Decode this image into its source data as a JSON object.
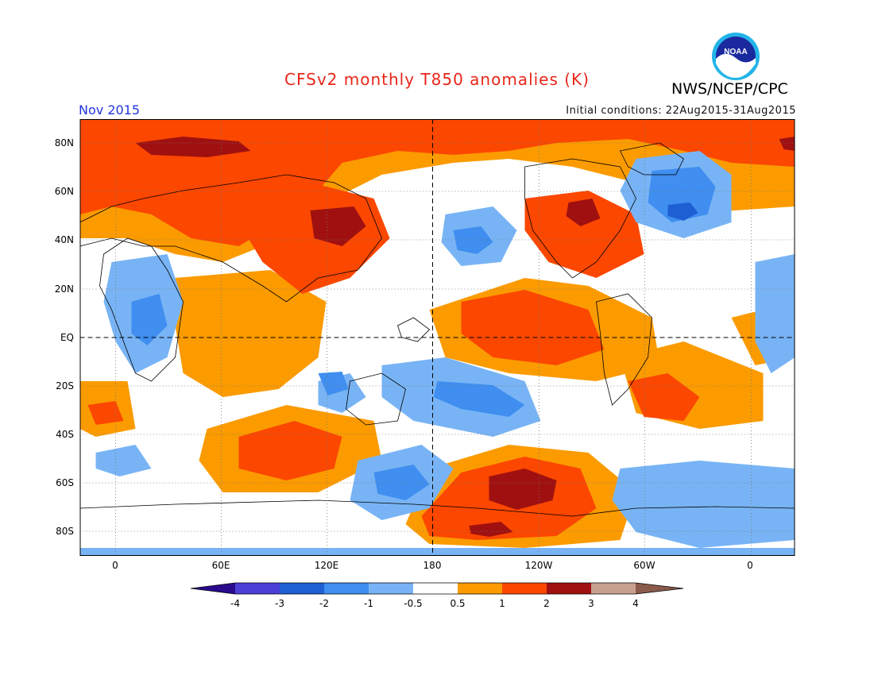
{
  "header": {
    "title": "CFSv2 monthly T850 anomalies (K)",
    "agency": "NWS/NCEP/CPC",
    "logo_text": "NOAA",
    "month": "Nov 2015",
    "initial_conditions": "Initial conditions: 22Aug2015-31Aug2015"
  },
  "map": {
    "variable": "T850 anomaly",
    "units": "K",
    "projection": "cylindrical-equidistant",
    "lon_range": [
      -20,
      380
    ],
    "lat_range": [
      -90,
      90
    ],
    "lat_labels": [
      "80N",
      "60N",
      "40N",
      "20N",
      "EQ",
      "20S",
      "40S",
      "60S",
      "80S"
    ],
    "lon_labels": [
      "0",
      "60E",
      "120E",
      "180",
      "120W",
      "60W",
      "0"
    ],
    "anomaly_features": [
      {
        "region": "Siberia / Arctic Eurasia",
        "level": "2 to 3"
      },
      {
        "region": "Mongolia / North China",
        "level": "2 to 3"
      },
      {
        "region": "Eastern Canada / Great Lakes",
        "level": "2 to 3"
      },
      {
        "region": "South Pacific near 60S 130W",
        "level": "2 to 3"
      },
      {
        "region": "Equatorial Pacific",
        "level": "1 to 2"
      },
      {
        "region": "Labrador Sea / Greenland",
        "level": "-2 to -1"
      },
      {
        "region": "Central-south Pacific",
        "level": "-1 to -0.5"
      }
    ]
  },
  "colorbar": {
    "labels": [
      "-4",
      "-3",
      "-2",
      "-1",
      "-0.5",
      "0.5",
      "1",
      "2",
      "3",
      "4"
    ],
    "colors": {
      "below_minus4": "#2a0a8c",
      "m4_m3": "#4b3fd6",
      "m3_m2": "#1e5fd4",
      "m2_m1": "#3f8ef0",
      "m1_m05": "#78b4f5",
      "neutral": "#ffffff",
      "p05_p1": "#fb9b00",
      "p1_p2": "#fb4700",
      "p2_p3": "#a01010",
      "p3_p4": "#c8a090",
      "above_4": "#8a5a4a"
    }
  }
}
